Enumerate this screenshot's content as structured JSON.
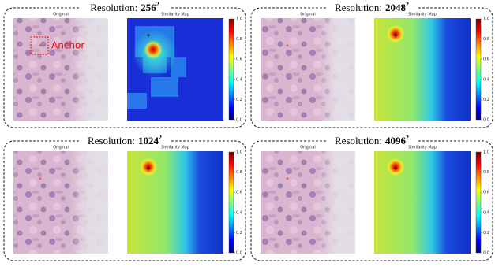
{
  "panels": [
    {
      "title": {
        "prefix": "Resolution:",
        "base": "256",
        "exponent": "2"
      },
      "original_label": "Original",
      "map_title": "Similarity Map"
    },
    {
      "title": {
        "prefix": "Resolution:",
        "base": "2048",
        "exponent": "2"
      },
      "original_label": "Original",
      "map_title": "Similarity Map"
    },
    {
      "title": {
        "prefix": "Resolution:",
        "base": "1024",
        "exponent": "2"
      },
      "original_label": "Original",
      "map_title": "Similarity Map"
    },
    {
      "title": {
        "prefix": "Resolution:",
        "base": "4096",
        "exponent": "2"
      },
      "original_label": "Original",
      "map_title": "Similarity Map"
    }
  ],
  "anchor_label": "Anchor",
  "colorbar_ticks": [
    {
      "value": 0,
      "label": "0.0"
    },
    {
      "value": 0.2,
      "label": "0.2"
    },
    {
      "value": 0.4,
      "label": "0.4"
    },
    {
      "value": 0.6,
      "label": "0.6"
    },
    {
      "value": 0.8,
      "label": "0.8"
    },
    {
      "value": 1,
      "label": "1.0"
    }
  ]
}
